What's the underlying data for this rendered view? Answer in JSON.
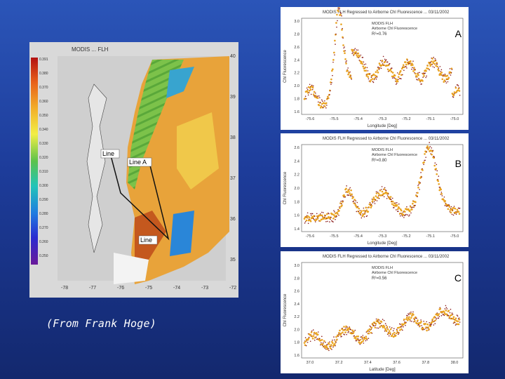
{
  "caption": "(From Frank Hoge)",
  "map": {
    "title": "MODIS ... FLH",
    "line_labels": [
      "Line",
      "Line A",
      "Line"
    ],
    "lat_ticks": [
      "40",
      "39",
      "38",
      "37",
      "36",
      "35"
    ],
    "lon_ticks": [
      "-78",
      "-77",
      "-76",
      "-75",
      "-74",
      "-73",
      "-72"
    ],
    "colorbar_ticks": [
      "0.391",
      "0.380",
      "0.370",
      "0.360",
      "0.350",
      "0.340",
      "0.330",
      "0.320",
      "0.310",
      "0.300",
      "0.290",
      "0.280",
      "0.270",
      "0.260",
      "0.250"
    ]
  },
  "panels": [
    {
      "letter": "A",
      "title": "MODIS FLH Regressed to Airborne Chl Fluorescence ... 03/11/2002",
      "legend": [
        "MODIS FLH",
        "Airborne Chl Fluorescence"
      ],
      "r2": "R²=0.76",
      "xlabel": "Longitude [Deg]",
      "ylabel": "Chl Fluorescence",
      "x_ticks": [
        "-75.6",
        "-75.5",
        "-75.4",
        "-75.3",
        "-75.2",
        "-75.1",
        "-75.0"
      ],
      "y_ticks": [
        "3.0",
        "2.8",
        "2.6",
        "2.4",
        "2.2",
        "2.0",
        "1.8",
        "1.6"
      ]
    },
    {
      "letter": "B",
      "title": "MODIS FLH Regressed to Airborne Chl Fluorescence ... 03/11/2002",
      "legend": [
        "MODIS FLH",
        "Airborne Chl Fluorescence"
      ],
      "r2": "R²=0.80",
      "xlabel": "Longitude [Deg]",
      "ylabel": "Chl Fluorescence",
      "x_ticks": [
        "-75.6",
        "-75.5",
        "-75.4",
        "-75.3",
        "-75.2",
        "-75.1",
        "-75.0"
      ],
      "y_ticks": [
        "2.6",
        "2.4",
        "2.2",
        "2.0",
        "1.8",
        "1.6",
        "1.4"
      ]
    },
    {
      "letter": "C",
      "title": "MODIS FLH Regressed to Airborne Chl Fluorescence ... 03/11/2002",
      "legend": [
        "MODIS FLH",
        "Airborne Chl Fluorescence"
      ],
      "r2": "R²=0.56",
      "xlabel": "Latitude [Deg]",
      "ylabel": "Chl Fluorescence",
      "x_ticks": [
        "37.0",
        "37.2",
        "37.4",
        "37.6",
        "37.8",
        "38.0"
      ],
      "y_ticks": [
        "3.0",
        "2.8",
        "2.6",
        "2.4",
        "2.2",
        "2.0",
        "1.8",
        "1.6"
      ]
    }
  ]
}
